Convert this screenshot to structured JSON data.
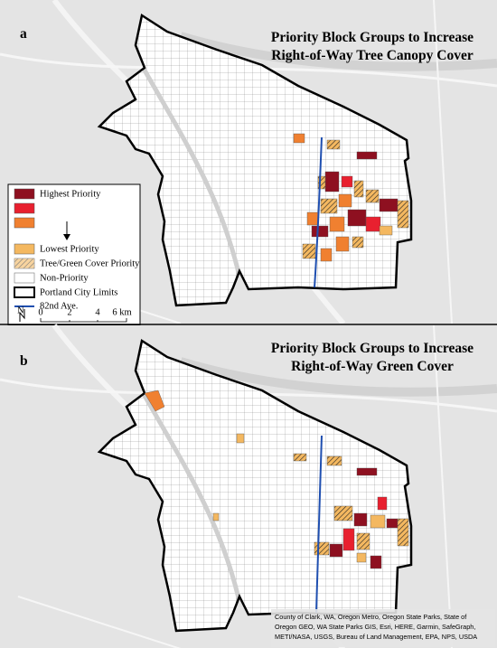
{
  "panels": [
    {
      "label": "a",
      "title": [
        "Priority Block Groups to Increase",
        "Right-of-Way Tree Canopy Cover"
      ]
    },
    {
      "label": "b",
      "title": [
        "Priority Block Groups to Increase",
        "Right-of-Way Green Cover"
      ]
    }
  ],
  "legend": {
    "items": [
      "Highest Priority",
      "Lowest Priority",
      "Tree/Green Cover Priority",
      "Non-Priority",
      "Portland City Limits",
      "82nd Ave."
    ],
    "scale_labels": [
      "0",
      "2",
      "4",
      "6 km"
    ],
    "north": "N"
  },
  "attribution": [
    "County of Clark, WA, Oregon Metro, Oregon State Parks, State of",
    "Oregon GEO, WA State Parks GIS, Esri, HERE, Garmin, SafeGraph,",
    "METI/NASA, USGS, Bureau of Land Management, EPA, NPS, USDA"
  ]
}
